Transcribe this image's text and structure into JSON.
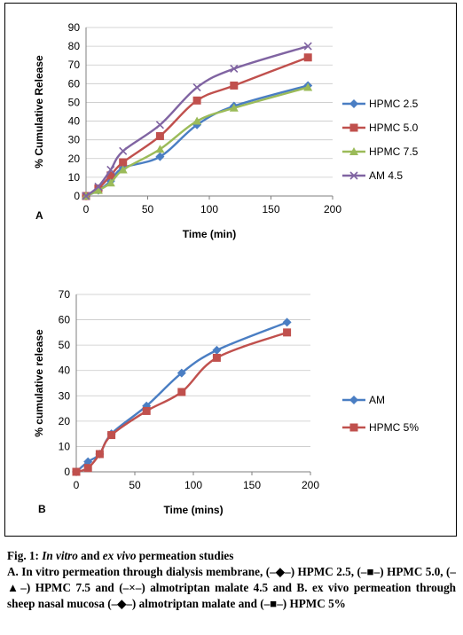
{
  "chart_data": [
    {
      "type": "line",
      "panel_label": "A",
      "xlabel": "Time (min)",
      "ylabel": "% Cumulative Release",
      "xlim": [
        0,
        200
      ],
      "ylim": [
        0,
        90
      ],
      "xticks": [
        "0",
        "50",
        "100",
        "150",
        "200"
      ],
      "yticks": [
        "0",
        "10",
        "20",
        "30",
        "40",
        "50",
        "60",
        "70",
        "80",
        "90"
      ],
      "grid": "horizontal",
      "legend_position": "right",
      "series": [
        {
          "name": "HPMC 2.5",
          "marker": "diamond",
          "color": "#4a7ec3",
          "x": [
            0,
            10,
            20,
            30,
            60,
            90,
            120,
            180
          ],
          "y": [
            0,
            3,
            8,
            15,
            21,
            38,
            48,
            59
          ]
        },
        {
          "name": "HPMC 5.0",
          "marker": "square",
          "color": "#c0504d",
          "x": [
            0,
            10,
            20,
            30,
            60,
            90,
            120,
            180
          ],
          "y": [
            0,
            4,
            11,
            18,
            32,
            51,
            59,
            74
          ]
        },
        {
          "name": "HPMC 7.5",
          "marker": "triangle",
          "color": "#9bbb59",
          "x": [
            0,
            10,
            20,
            30,
            60,
            90,
            120,
            180
          ],
          "y": [
            0,
            3,
            7,
            14,
            25,
            40,
            47,
            58
          ]
        },
        {
          "name": "AM 4.5",
          "marker": "x",
          "color": "#8064a2",
          "x": [
            0,
            10,
            20,
            30,
            60,
            90,
            120,
            180
          ],
          "y": [
            0,
            5,
            14,
            24,
            38,
            58,
            68,
            80
          ]
        }
      ]
    },
    {
      "type": "line",
      "panel_label": "B",
      "xlabel": "Time (mins)",
      "ylabel": "% cumulative release",
      "xlim": [
        0,
        200
      ],
      "ylim": [
        0,
        70
      ],
      "xticks": [
        "0",
        "50",
        "100",
        "150",
        "200"
      ],
      "yticks": [
        "0",
        "10",
        "20",
        "30",
        "40",
        "50",
        "60",
        "70"
      ],
      "grid": "horizontal",
      "legend_position": "right",
      "series": [
        {
          "name": "AM",
          "marker": "diamond",
          "color": "#4a7ec3",
          "x": [
            0,
            10,
            20,
            30,
            60,
            90,
            120,
            180
          ],
          "y": [
            0,
            4,
            7,
            15,
            26,
            39,
            48,
            59
          ]
        },
        {
          "name": "HPMC 5%",
          "marker": "square",
          "color": "#c0504d",
          "x": [
            0,
            10,
            20,
            30,
            60,
            90,
            120,
            180
          ],
          "y": [
            0,
            1.5,
            7,
            14.5,
            24,
            31.5,
            45,
            55
          ]
        }
      ]
    }
  ],
  "caption": {
    "fig_label": "Fig. 1:",
    "title_italic_1": "In vitro",
    "title_mid": "and",
    "title_italic_2": "ex vivo",
    "title_end": "permeation studies",
    "body": "A. In vitro permeation through dialysis membrane, (–◆–) HPMC 2.5, (–■–) HPMC 5.0, (–▲–) HPMC 7.5 and (–×–) almotriptan malate 4.5 and B. ex vivo permeation through sheep nasal mucosa (–◆–) almotriptan malate and (–■–) HPMC 5%"
  }
}
